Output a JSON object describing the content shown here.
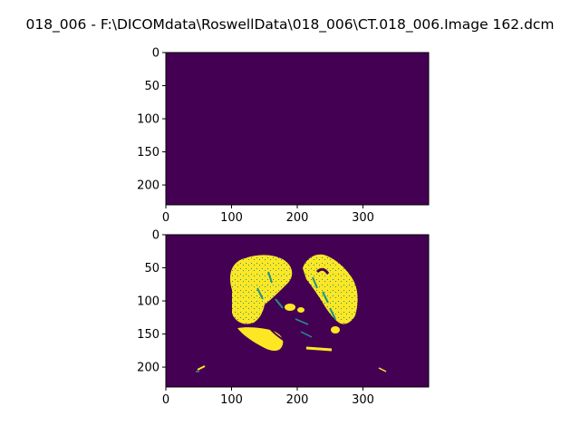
{
  "figure": {
    "title": "018_006 - F:\\DICOMdata\\RoswellData\\018_006\\CT.018_006.Image 162.dcm"
  },
  "colors": {
    "background_dark": "#440154",
    "highlight": "#fde725",
    "mid_tone": "#21918c",
    "axis": "#000000"
  },
  "chart_data": [
    {
      "type": "heatmap",
      "name": "top-panel",
      "colormap": "viridis",
      "xlim": [
        0,
        400
      ],
      "ylim": [
        230,
        0
      ],
      "x_ticks": [
        0,
        100,
        200,
        300
      ],
      "y_ticks": [
        0,
        50,
        100,
        150,
        200
      ],
      "content": "uniform"
    },
    {
      "type": "heatmap",
      "name": "bottom-panel",
      "colormap": "viridis",
      "xlim": [
        0,
        400
      ],
      "ylim": [
        230,
        0
      ],
      "x_ticks": [
        0,
        100,
        200,
        300
      ],
      "y_ticks": [
        0,
        50,
        100,
        150,
        200
      ],
      "content": "binary-mask"
    }
  ]
}
